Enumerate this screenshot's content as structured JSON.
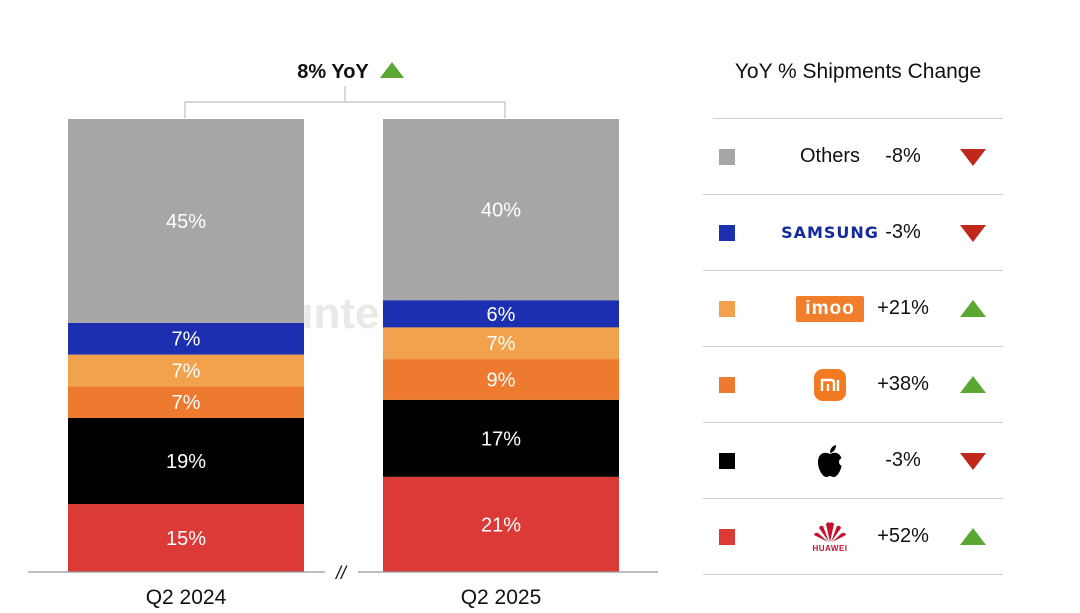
{
  "header": {
    "yoy_label": "8% YoY",
    "yoy_arrow": "up-triangle-icon"
  },
  "watermark": {
    "text": "Counterpoint"
  },
  "chart_data": {
    "type": "bar",
    "stacked": true,
    "categories": [
      "Q2 2024",
      "Q2 2025"
    ],
    "series": [
      {
        "name": "Huawei",
        "values": [
          15,
          21
        ],
        "labels": [
          "15%",
          "21%"
        ]
      },
      {
        "name": "Apple",
        "values": [
          19,
          17
        ],
        "labels": [
          "19%",
          "17%"
        ]
      },
      {
        "name": "Xiaomi",
        "values": [
          7,
          9
        ],
        "labels": [
          "7%",
          "9%"
        ]
      },
      {
        "name": "imoo",
        "values": [
          7,
          7
        ],
        "labels": [
          "7%",
          "7%"
        ]
      },
      {
        "name": "Samsung",
        "values": [
          7,
          6
        ],
        "labels": [
          "7%",
          "6%"
        ]
      },
      {
        "name": "Others",
        "values": [
          45,
          40
        ],
        "labels": [
          "45%",
          "40%"
        ]
      }
    ],
    "ylim": [
      0,
      100
    ],
    "axis_break": "//"
  },
  "legend": {
    "title": "YoY % Shipments Change",
    "rows": [
      {
        "brand": "Others",
        "change": "-8%",
        "direction": "down"
      },
      {
        "brand": "SAMSUNG",
        "change": "-3%",
        "direction": "down"
      },
      {
        "brand": "imoo",
        "change": "+21%",
        "direction": "up"
      },
      {
        "brand": "mi",
        "change": "+38%",
        "direction": "up"
      },
      {
        "brand": "apple-logo-icon",
        "change": "-3%",
        "direction": "down"
      },
      {
        "brand": "HUAWEI",
        "change": "+52%",
        "direction": "up"
      }
    ]
  },
  "colors": {
    "huawei": "#dc3a36",
    "apple": "#000000",
    "xiaomi": "#ee7a30",
    "imoo": "#f2a24c",
    "samsung": "#1b2fb0",
    "others": "#a6a6a6",
    "up": "#5aa832",
    "down": "#c0281e"
  }
}
